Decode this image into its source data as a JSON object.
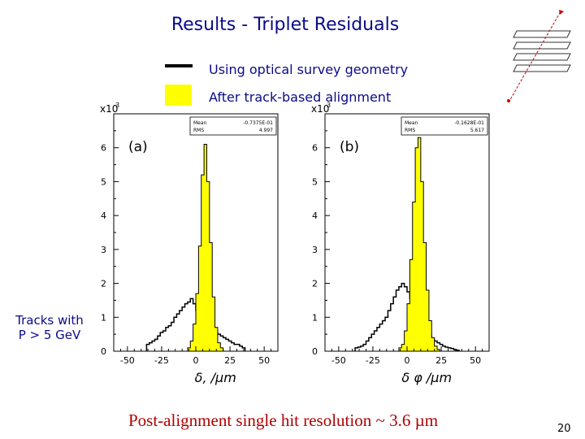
{
  "slide": {
    "title": "Results - Triplet Residuals",
    "legend": {
      "line_label": "Using optical survey geometry",
      "box_label": "After track-based alignment"
    },
    "side_note": [
      "Tracks with",
      "P > 5  GeV"
    ],
    "footer": "Post-alignment single hit resolution ~ 3.6 µm",
    "page_number": "20",
    "colors": {
      "title": "#0a0a8a",
      "fill": "#ffff00",
      "footer": "#b00000"
    }
  },
  "chart_data": [
    {
      "type": "histogram",
      "panel_label": "(a)",
      "multiplier": "x10",
      "multiplier_exp": "3",
      "stats": [
        {
          "key": "Mean",
          "value": "-0.7375E-01"
        },
        {
          "key": "RMS",
          "value": "4.997"
        }
      ],
      "xlabel": "δ, /µm",
      "xlim": [
        -60,
        60
      ],
      "ylim": [
        0,
        7
      ],
      "xticks": [
        -50,
        -25,
        0,
        25,
        50
      ],
      "yticks": [
        0,
        1,
        2,
        3,
        4,
        5,
        6
      ],
      "bin_width": 2,
      "series": [
        {
          "values": [
            0.2,
            0.25,
            0.3,
            0.35,
            0.45,
            0.55,
            0.6,
            0.7,
            0.75,
            0.85,
            1.0,
            1.1,
            1.2,
            1.3,
            1.4,
            1.45,
            1.55,
            1.4,
            1.2,
            1.1,
            1.0,
            0.9,
            0.8,
            0.7,
            0.6,
            0.55,
            0.5,
            0.45,
            0.4,
            0.35,
            0.3,
            0.25,
            0.2,
            0.2,
            0.15,
            0.1
          ]
        },
        {
          "values": [
            0,
            0,
            0,
            0,
            0,
            0,
            0,
            0,
            0,
            0,
            0,
            0,
            0,
            0,
            0,
            0.1,
            0.3,
            0.8,
            1.7,
            3.1,
            5.2,
            6.1,
            5.0,
            3.2,
            1.6,
            0.7,
            0.25,
            0.1,
            0,
            0,
            0,
            0,
            0,
            0,
            0,
            0
          ]
        }
      ]
    },
    {
      "type": "histogram",
      "panel_label": "(b)",
      "multiplier": "x10",
      "multiplier_exp": "3",
      "stats": [
        {
          "key": "Mean",
          "value": "-0.1628E-01"
        },
        {
          "key": "RMS",
          "value": "5.617"
        }
      ],
      "xlabel": "δ φ /µm",
      "xlim": [
        -60,
        60
      ],
      "ylim": [
        0,
        7
      ],
      "xticks": [
        -50,
        -25,
        0,
        25,
        50
      ],
      "yticks": [
        0,
        1,
        2,
        3,
        4,
        5,
        6
      ],
      "bin_width": 2,
      "series": [
        {
          "values": [
            0.1,
            0.12,
            0.15,
            0.2,
            0.3,
            0.4,
            0.5,
            0.6,
            0.7,
            0.8,
            0.9,
            1.0,
            1.2,
            1.4,
            1.6,
            1.8,
            1.9,
            2.0,
            1.9,
            1.75,
            1.55,
            1.45,
            1.35,
            1.2,
            1.0,
            0.8,
            0.6,
            0.45,
            0.35,
            0.3,
            0.25,
            0.2,
            0.15,
            0.12,
            0.1,
            0.08,
            0.05,
            0.03
          ]
        },
        {
          "values": [
            0,
            0,
            0,
            0,
            0,
            0,
            0,
            0,
            0,
            0,
            0,
            0,
            0,
            0,
            0,
            0,
            0.1,
            0.2,
            0.6,
            1.4,
            2.7,
            4.4,
            6.0,
            6.3,
            5.0,
            3.2,
            1.8,
            0.9,
            0.4,
            0.15,
            0.05,
            0,
            0,
            0,
            0,
            0,
            0,
            0
          ]
        }
      ]
    }
  ]
}
